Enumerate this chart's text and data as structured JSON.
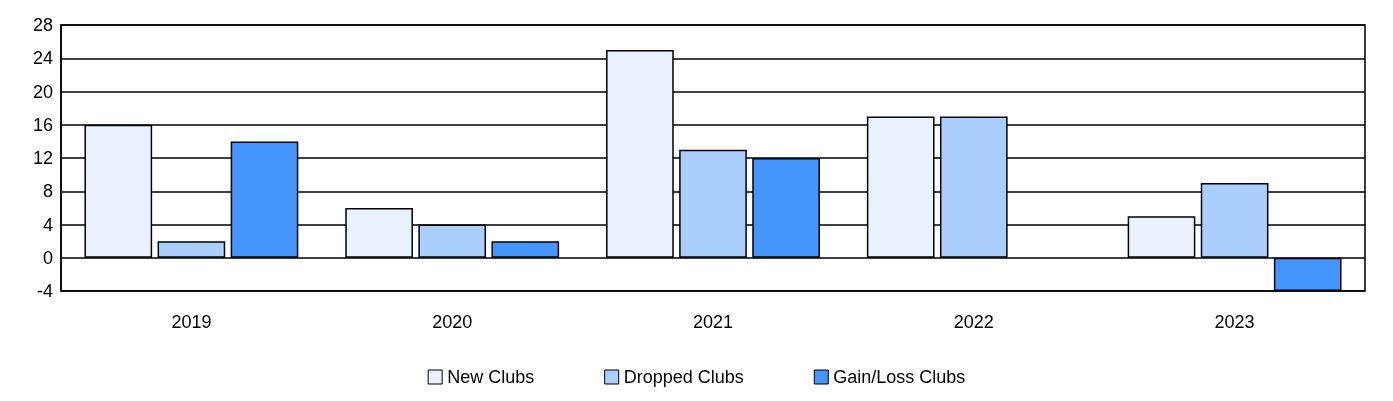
{
  "chart_data": {
    "type": "bar",
    "categories": [
      "2019",
      "2020",
      "2021",
      "2022",
      "2023"
    ],
    "series": [
      {
        "name": "New Clubs",
        "color": "#ebf2ff",
        "values": [
          16,
          6,
          25,
          17,
          5
        ]
      },
      {
        "name": "Dropped Clubs",
        "color": "#aacfff",
        "values": [
          2,
          4,
          13,
          17,
          9
        ]
      },
      {
        "name": "Gain/Loss Clubs",
        "color": "#4595ff",
        "values": [
          14,
          2,
          12,
          0,
          -4
        ]
      }
    ],
    "ylim": [
      -4,
      28
    ],
    "yticks": [
      -4,
      0,
      4,
      8,
      12,
      16,
      20,
      24,
      28
    ],
    "grid": "y",
    "legend": "bottom"
  }
}
